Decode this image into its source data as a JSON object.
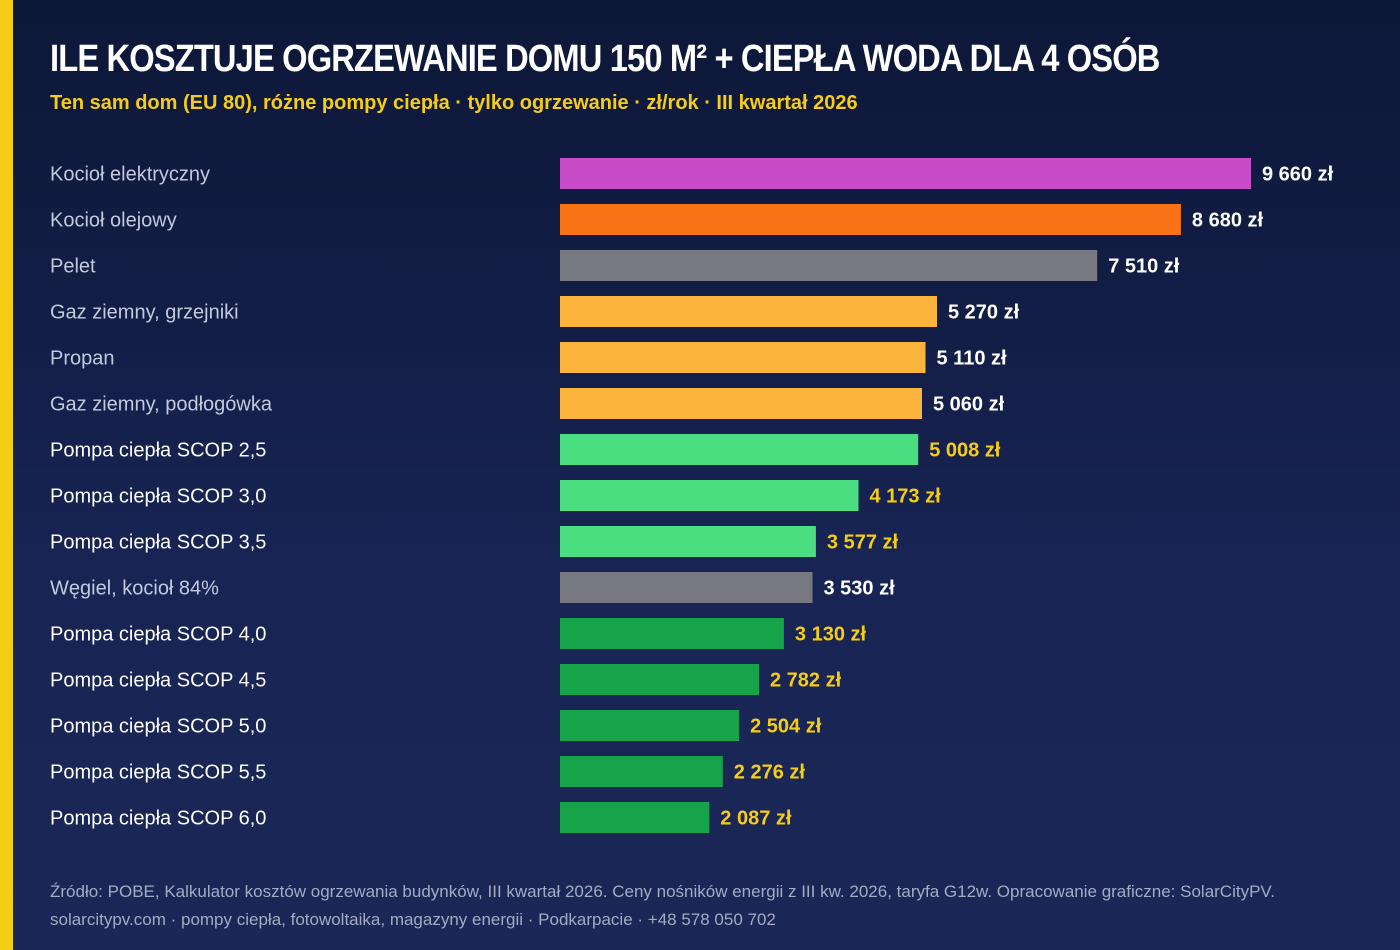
{
  "header": {
    "title": "ILE KOSZTUJE OGRZEWANIE DOMU 150 M² + CIEPŁA WODA DLA 4 OSÓB",
    "subtitle": "Ten sam dom (EU 80), różne pompy ciepła · tylko ogrzewanie · zł/rok · III kwartał 2026"
  },
  "colors": {
    "accent": "#f5cc16",
    "electric": "#c84bc8",
    "oil": "#f97316",
    "solid_fuel": "#787882",
    "gas_propane": "#fdb43c",
    "heat_pump_low": "#4ade80",
    "heat_pump_high": "#16a34a",
    "label_white": "#ffffff",
    "label_yellow": "#f5cc16"
  },
  "chart_data": {
    "type": "bar",
    "orientation": "horizontal",
    "title": "",
    "xlabel": "",
    "ylabel": "",
    "xlim": [
      0,
      9660
    ],
    "grid": false,
    "legend": "none",
    "value_suffix": " zł",
    "categories": [
      "Kocioł elektryczny",
      "Kocioł olejowy",
      "Pelet",
      "Gaz ziemny, grzejniki",
      "Propan",
      "Gaz ziemny, podłogówka",
      "Pompa ciepła SCOP 2,5",
      "Pompa ciepła SCOP 3,0",
      "Pompa ciepła SCOP 3,5",
      "Węgiel, kocioł 84%",
      "Pompa ciepła SCOP 4,0",
      "Pompa ciepła SCOP 4,5",
      "Pompa ciepła SCOP 5,0",
      "Pompa ciepła SCOP 5,5",
      "Pompa ciepła SCOP 6,0"
    ],
    "values": [
      9660,
      8680,
      7510,
      5270,
      5110,
      5060,
      5008,
      4173,
      3577,
      3530,
      3130,
      2782,
      2504,
      2276,
      2087
    ],
    "value_labels": [
      "9 660 zł",
      "8 680 zł",
      "7 510 zł",
      "5 270 zł",
      "5 110 zł",
      "5 060 zł",
      "5 008 zł",
      "4 173 zł",
      "3 577 zł",
      "3 530 zł",
      "3 130 zł",
      "2 782 zł",
      "2 504 zł",
      "2 276 zł",
      "2 087 zł"
    ],
    "bar_colors": [
      "#c84bc8",
      "#f97316",
      "#787882",
      "#fdb43c",
      "#fdb43c",
      "#fdb43c",
      "#4ade80",
      "#4ade80",
      "#4ade80",
      "#787882",
      "#16a34a",
      "#16a34a",
      "#16a34a",
      "#16a34a",
      "#16a34a"
    ],
    "label_colors": [
      "#ffffff",
      "#ffffff",
      "#ffffff",
      "#ffffff",
      "#ffffff",
      "#ffffff",
      "#f5cc16",
      "#f5cc16",
      "#f5cc16",
      "#ffffff",
      "#f5cc16",
      "#f5cc16",
      "#f5cc16",
      "#f5cc16",
      "#f5cc16"
    ],
    "category_label_colors": [
      "#c4c9dd",
      "#c4c9dd",
      "#c4c9dd",
      "#c4c9dd",
      "#c4c9dd",
      "#c4c9dd",
      "#ffffff",
      "#ffffff",
      "#ffffff",
      "#c4c9dd",
      "#ffffff",
      "#ffffff",
      "#ffffff",
      "#ffffff",
      "#ffffff"
    ]
  },
  "footer": {
    "source": "Źródło: POBE, Kalkulator kosztów ogrzewania budynków, III kwartał 2026. Ceny nośników energii z III kw. 2026, taryfa G12w. Opracowanie graficzne: SolarCityPV.",
    "contact": "solarcitypv.com · pompy ciepła, fotowoltaika, magazyny energii · Podkarpacie · +48 578 050 702"
  }
}
